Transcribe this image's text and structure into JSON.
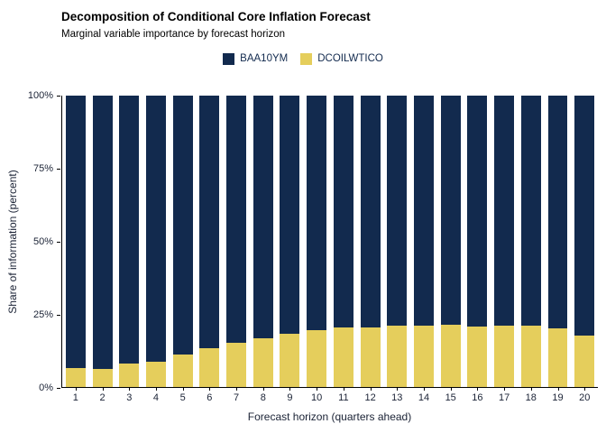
{
  "header": {
    "title": "Decomposition of Conditional Core Inflation Forecast",
    "subtitle": "Marginal variable importance by forecast horizon"
  },
  "colors": {
    "baa10ym": "#122A4E",
    "dcoilwtico": "#E5CE5C",
    "axis_line": "#000000",
    "axis_text": "#1A2235",
    "background": "#FFFFFF"
  },
  "chart_data": {
    "type": "bar",
    "stacked": true,
    "title": "Decomposition of Conditional Core Inflation Forecast",
    "subtitle": "Marginal variable importance by forecast horizon",
    "xlabel": "Forecast horizon (quarters ahead)",
    "ylabel": "Share of information (percent)",
    "categories": [
      "1",
      "2",
      "3",
      "4",
      "5",
      "6",
      "7",
      "8",
      "9",
      "10",
      "11",
      "12",
      "13",
      "14",
      "15",
      "16",
      "17",
      "18",
      "19",
      "20"
    ],
    "series": [
      {
        "name": "BAA10YM",
        "color": "#122A4E",
        "values": [
          93.5,
          93.8,
          92.0,
          91.2,
          89.0,
          86.7,
          84.7,
          83.2,
          81.6,
          80.5,
          79.7,
          79.5,
          79.0,
          79.0,
          78.5,
          79.4,
          79.1,
          78.8,
          80.0,
          82.2
        ]
      },
      {
        "name": "DCOILWTICO",
        "color": "#E5CE5C",
        "values": [
          6.5,
          6.2,
          8.0,
          8.8,
          11.0,
          13.3,
          15.3,
          16.8,
          18.4,
          19.5,
          20.3,
          20.5,
          21.0,
          21.0,
          21.5,
          20.6,
          20.9,
          21.2,
          20.0,
          17.8
        ]
      }
    ],
    "ylim": [
      0,
      100
    ],
    "y_ticks": [
      {
        "value": 0,
        "label": "0%"
      },
      {
        "value": 25,
        "label": "25%"
      },
      {
        "value": 50,
        "label": "50%"
      },
      {
        "value": 75,
        "label": "75%"
      },
      {
        "value": 100,
        "label": "100%"
      }
    ],
    "grid": false,
    "legend_position": "top-center"
  }
}
